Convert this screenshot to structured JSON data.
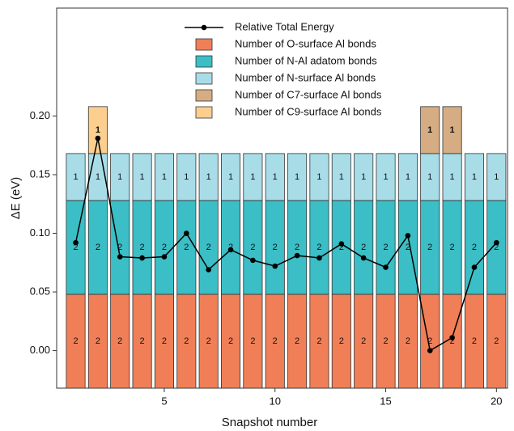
{
  "chart_data": {
    "type": "bar",
    "xlabel": "Snapshot number",
    "ylabel": "ΔE (eV)",
    "x": [
      1,
      2,
      3,
      4,
      5,
      6,
      7,
      8,
      9,
      10,
      11,
      12,
      13,
      14,
      15,
      16,
      17,
      18,
      19,
      20
    ],
    "xlim": [
      0.14,
      20.5
    ],
    "xticks": [
      5,
      10,
      15,
      20
    ],
    "ylim": [
      -0.032,
      0.292
    ],
    "yticks": [
      {
        "value": 0,
        "label": "0.00"
      },
      0.05,
      {
        "value": 0.1,
        "label": "0.10"
      },
      0.15,
      {
        "value": 0.2,
        "label": "0.20"
      }
    ],
    "y2lim": [
      0,
      8.1
    ],
    "legend": "top",
    "series": [
      {
        "name": "Relative Total Energy",
        "type": "line",
        "color": "#000000",
        "values": [
          0.092,
          0.181,
          0.08,
          0.079,
          0.08,
          0.1,
          0.069,
          0.086,
          0.077,
          0.072,
          0.081,
          0.079,
          0.091,
          0.079,
          0.071,
          0.098,
          0.0,
          0.011,
          0.071,
          0.092
        ]
      },
      {
        "name": "Number of O-surface Al bonds",
        "axis": "y2",
        "color": "#f07f57",
        "values": [
          2,
          2,
          2,
          2,
          2,
          2,
          2,
          2,
          2,
          2,
          2,
          2,
          2,
          2,
          2,
          2,
          2,
          2,
          2,
          2
        ]
      },
      {
        "name": "Number of N-Al adatom bonds",
        "axis": "y2",
        "color": "#3bbec5",
        "values": [
          2,
          2,
          2,
          2,
          2,
          2,
          2,
          2,
          2,
          2,
          2,
          2,
          2,
          2,
          2,
          2,
          2,
          2,
          2,
          2
        ]
      },
      {
        "name": "Number of N-surface Al bonds",
        "axis": "y2",
        "color": "#a8dde8",
        "values": [
          1,
          1,
          1,
          1,
          1,
          1,
          1,
          1,
          1,
          1,
          1,
          1,
          1,
          1,
          1,
          1,
          1,
          1,
          1,
          1
        ]
      },
      {
        "name": "Number of C7-surface Al bonds",
        "axis": "y2",
        "color": "#d6ad82",
        "values": [
          null,
          null,
          null,
          null,
          null,
          null,
          null,
          null,
          null,
          null,
          null,
          null,
          null,
          null,
          null,
          null,
          1,
          1,
          null,
          null
        ]
      },
      {
        "name": "Number of C9-surface Al bonds",
        "axis": "y2",
        "color": "#fccf8f",
        "values": [
          null,
          1,
          null,
          null,
          null,
          null,
          null,
          null,
          null,
          null,
          null,
          null,
          null,
          null,
          null,
          null,
          null,
          null,
          null,
          null
        ]
      }
    ]
  }
}
